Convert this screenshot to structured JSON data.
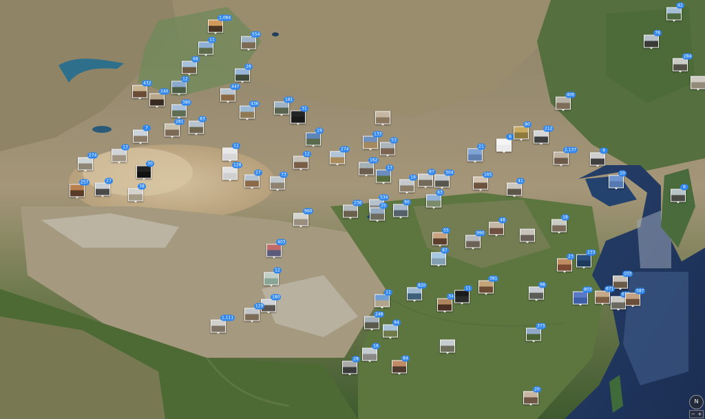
{
  "map": {
    "view": "satellite",
    "region_description": "Central Asia and China satellite basemap"
  },
  "pins": [
    {
      "id": "p1",
      "count": "1,084",
      "sky": "#cf9a5a",
      "ground": "#4a3525"
    },
    {
      "id": "p2",
      "count": "554",
      "sky": "#9fb3c9",
      "ground": "#7c6b53"
    },
    {
      "id": "p3",
      "count": "11",
      "sky": "#8fb0d6",
      "ground": "#5e6b4a"
    },
    {
      "id": "p4",
      "count": "68",
      "sky": "#a7c1dd",
      "ground": "#6c5b40"
    },
    {
      "id": "p5",
      "count": "28",
      "sky": "#97b6d8",
      "ground": "#3f4a38"
    },
    {
      "id": "p6",
      "count": "12",
      "sky": "#8aa9cc",
      "ground": "#4d5c44"
    },
    {
      "id": "p7",
      "count": "447",
      "sky": "#b9c6d1",
      "ground": "#8a6a46"
    },
    {
      "id": "p8",
      "count": "432",
      "sky": "#c9b491",
      "ground": "#6b4c36"
    },
    {
      "id": "p9",
      "count": "240",
      "sky": "#b9a78b",
      "ground": "#3a2b22"
    },
    {
      "id": "p10",
      "count": "380",
      "sky": "#a9c0d8",
      "ground": "#5f6d52"
    },
    {
      "id": "p11",
      "count": "436",
      "sky": "#9bb8d4",
      "ground": "#8f7a55"
    },
    {
      "id": "p12",
      "count": "181",
      "sky": "#a0b4c6",
      "ground": "#59634d"
    },
    {
      "id": "p13",
      "count": "31",
      "sky": "#252525",
      "ground": "#1a1a1a"
    },
    {
      "id": "p14",
      "count": "",
      "sky": "#c4b6a0",
      "ground": "#8b7660"
    },
    {
      "id": "p15",
      "count": "281",
      "sky": "#c8c0ae",
      "ground": "#7a6a55"
    },
    {
      "id": "p16",
      "count": "83",
      "sky": "#b7c4cf",
      "ground": "#6f6650"
    },
    {
      "id": "p17",
      "count": "7",
      "sky": "#cbd3da",
      "ground": "#8a7a66"
    },
    {
      "id": "p18",
      "count": "13",
      "sky": "#d0d4d7",
      "ground": "#a29483"
    },
    {
      "id": "p19",
      "count": "274",
      "sky": "#cfd4d6",
      "ground": "#8e8676"
    },
    {
      "id": "p20",
      "count": "30",
      "sky": "#222222",
      "ground": "#111111"
    },
    {
      "id": "p21",
      "count": "257",
      "sky": "#b8804f",
      "ground": "#5a3b28"
    },
    {
      "id": "p22",
      "count": "27",
      "sky": "#c9cfd3",
      "ground": "#4a4a4a"
    },
    {
      "id": "p23",
      "count": "38",
      "sky": "#d4d2cc",
      "ground": "#a59a86"
    },
    {
      "id": "p24",
      "count": "11",
      "sky": "#e8e8e8",
      "ground": "#d7d7d7"
    },
    {
      "id": "p25",
      "count": "128",
      "sky": "#e3e3e3",
      "ground": "#cfcfcf"
    },
    {
      "id": "p26",
      "count": "27",
      "sky": "#b6c4d2",
      "ground": "#8a6a48"
    },
    {
      "id": "p27",
      "count": "73",
      "sky": "#bfc6cc",
      "ground": "#8d8370"
    },
    {
      "id": "p28",
      "count": "19",
      "sky": "#5d85b8",
      "ground": "#5a6a4e"
    },
    {
      "id": "p29",
      "count": "12",
      "sky": "#c7c2b8",
      "ground": "#7a5d45"
    },
    {
      "id": "p30",
      "count": "274",
      "sky": "#b2c5d8",
      "ground": "#a88a5c"
    },
    {
      "id": "p31",
      "count": "133",
      "sky": "#6f8fbd",
      "ground": "#a3895d"
    },
    {
      "id": "p32",
      "count": "53",
      "sky": "#a9b4bc",
      "ground": "#7a6350"
    },
    {
      "id": "p33",
      "count": "162",
      "sky": "#a4b0b6",
      "ground": "#6b5e4e"
    },
    {
      "id": "p34",
      "count": "13",
      "sky": "#6c8ebc",
      "ground": "#596c3c"
    },
    {
      "id": "p35",
      "count": "19",
      "sky": "#c5c9cb",
      "ground": "#8c7d68"
    },
    {
      "id": "p36",
      "count": "87",
      "sky": "#c9cbc8",
      "ground": "#736a5a"
    },
    {
      "id": "p37",
      "count": "304",
      "sky": "#c0c7cd",
      "ground": "#58574d"
    },
    {
      "id": "p38",
      "count": "63",
      "sky": "#8fb2d6",
      "ground": "#7c8a6c"
    },
    {
      "id": "p39",
      "count": "236",
      "sky": "#b1b8ba",
      "ground": "#6a604c"
    },
    {
      "id": "p40",
      "count": "534",
      "sky": "#b6c3cf",
      "ground": "#8d8d86"
    },
    {
      "id": "p41",
      "count": "90",
      "sky": "#a8b8c8",
      "ground": "#56606a"
    },
    {
      "id": "p42",
      "count": "25",
      "sky": "#95abc2",
      "ground": "#6d6a5e"
    },
    {
      "id": "p43",
      "count": "960",
      "sky": "#d4d4cf",
      "ground": "#9a8f7c"
    },
    {
      "id": "p44",
      "count": "403",
      "sky": "#c06a6a",
      "ground": "#5a5a7a"
    },
    {
      "id": "p45",
      "count": "12",
      "sky": "#bfcfc6",
      "ground": "#8aa596"
    },
    {
      "id": "p46",
      "count": "180",
      "sky": "#cfd3d6",
      "ground": "#5a5550"
    },
    {
      "id": "p47",
      "count": "129",
      "sky": "#c3c6c9",
      "ground": "#7b6b57"
    },
    {
      "id": "p48",
      "count": "1,111",
      "sky": "#d1d0cc",
      "ground": "#7e7365"
    },
    {
      "id": "p49",
      "count": "11",
      "sky": "#6f9fd6",
      "ground": "#b0a58a"
    },
    {
      "id": "p50",
      "count": "820",
      "sky": "#9fbad1",
      "ground": "#3f5f78"
    },
    {
      "id": "p51",
      "count": "248",
      "sky": "#a3aeb6",
      "ground": "#5a5a4c"
    },
    {
      "id": "p52",
      "count": "94",
      "sky": "#a8c3d9",
      "ground": "#6e7a48"
    },
    {
      "id": "p53",
      "count": "16",
      "sky": "#c5ccd1",
      "ground": "#8b8a87"
    },
    {
      "id": "p54",
      "count": "28",
      "sky": "#a9a9a7",
      "ground": "#3b3b3b"
    },
    {
      "id": "p55",
      "count": "84",
      "sky": "#c28b67",
      "ground": "#4f3a2f"
    },
    {
      "id": "p56",
      "count": "",
      "sky": "#c8cdd0",
      "ground": "#6e6e5c"
    },
    {
      "id": "p57",
      "count": "34",
      "sky": "#ad8660",
      "ground": "#4a3023"
    },
    {
      "id": "p58",
      "count": "11",
      "sky": "#1a1a1a",
      "ground": "#2a2a2a"
    },
    {
      "id": "p59",
      "count": "381",
      "sky": "#c6a47a",
      "ground": "#6b4b33"
    },
    {
      "id": "p60",
      "count": "990",
      "sky": "#b7b9ba",
      "ground": "#6b6154"
    },
    {
      "id": "p61",
      "count": "55",
      "sky": "#c9a27f",
      "ground": "#5c3e2d"
    },
    {
      "id": "p62",
      "count": "87",
      "sky": "#a7c8e2",
      "ground": "#829fb2"
    },
    {
      "id": "p63",
      "count": "48",
      "sky": "#c4b6a5",
      "ground": "#6f5040"
    },
    {
      "id": "p64",
      "count": "165",
      "sky": "#d2c4b0",
      "ground": "#6c5440"
    },
    {
      "id": "p65",
      "count": "21",
      "sky": "#7fa3d3",
      "ground": "#5f7fb0"
    },
    {
      "id": "p66",
      "count": "6",
      "sky": "#f4f4f4",
      "ground": "#ebebeb"
    },
    {
      "id": "p67",
      "count": "80",
      "sky": "#c9aa5e",
      "ground": "#8e7a3c"
    },
    {
      "id": "p68",
      "count": "212",
      "sky": "#d4d6d8",
      "ground": "#3e3e3e"
    },
    {
      "id": "p69",
      "count": "400",
      "sky": "#b7b2a6",
      "ground": "#7e6d58"
    },
    {
      "id": "p70",
      "count": "2,137",
      "sky": "#c1b3a2",
      "ground": "#6d5a48"
    },
    {
      "id": "p71",
      "count": "9",
      "sky": "#cfcfcf",
      "ground": "#3f3f3f"
    },
    {
      "id": "p72",
      "count": "10",
      "sky": "#6e95cf",
      "ground": "#5479b3"
    },
    {
      "id": "p73",
      "count": "41",
      "sky": "#cbc8c2",
      "ground": "#5d5548"
    },
    {
      "id": "p74",
      "count": "",
      "sky": "#c8c4bd",
      "ground": "#6a6058"
    },
    {
      "id": "p75",
      "count": "98",
      "sky": "#c6cbcf",
      "ground": "#5d5d57"
    },
    {
      "id": "p76",
      "count": "18",
      "sky": "#cbcbc6",
      "ground": "#7a6a5a"
    },
    {
      "id": "p77",
      "count": "23",
      "sky": "#c08c62",
      "ground": "#7a4a32"
    },
    {
      "id": "p78",
      "count": "233",
      "sky": "#2b4f7e",
      "ground": "#1d3a5a"
    },
    {
      "id": "p79",
      "count": "103",
      "sky": "#c8c2b8",
      "ground": "#6a5a48"
    },
    {
      "id": "p80",
      "count": "803",
      "sky": "#5a79c6",
      "ground": "#3d5fa8"
    },
    {
      "id": "p81",
      "count": "671",
      "sky": "#c3a98a",
      "ground": "#7a5d43"
    },
    {
      "id": "p82",
      "count": "616",
      "sky": "#c9c9c4",
      "ground": "#6a6a5f"
    },
    {
      "id": "p83",
      "count": "587",
      "sky": "#c2a283",
      "ground": "#6b4f3b"
    },
    {
      "id": "p84",
      "count": "373",
      "sky": "#8fa9c6",
      "ground": "#4b6232"
    },
    {
      "id": "p85",
      "count": "20",
      "sky": "#c8b6a3",
      "ground": "#6e5644"
    },
    {
      "id": "p86",
      "count": "42",
      "sky": "#a7bfd6",
      "ground": "#4c6a3e"
    },
    {
      "id": "p87",
      "count": "78",
      "sky": "#b7bfc7",
      "ground": "#3a3a36"
    },
    {
      "id": "p88",
      "count": "284",
      "sky": "#cbcbc7",
      "ground": "#545048"
    },
    {
      "id": "p89",
      "count": "",
      "sky": "#d0ccc4",
      "ground": "#948a7a"
    },
    {
      "id": "p90",
      "count": "6",
      "sky": "#b9c4c9",
      "ground": "#4a4a46"
    }
  ],
  "controls": {
    "compass_label": "N",
    "zoom_out_label": "−",
    "zoom_in_label": "+"
  }
}
